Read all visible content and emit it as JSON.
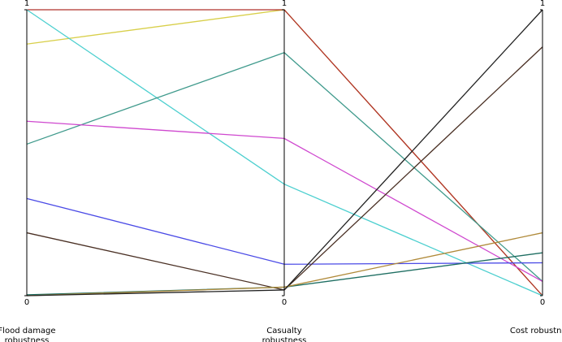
{
  "chart_data": {
    "type": "parallel",
    "dimensions": [
      "Flood damage robustness",
      "Casualty robustness",
      "Cost robustness"
    ],
    "ylim": [
      0,
      1
    ],
    "yticks": [
      0,
      1
    ],
    "series": [
      {
        "color": "#d8cf4a",
        "values": [
          0.88,
          1,
          0
        ]
      },
      {
        "color": "#b0302a",
        "values": [
          1,
          1,
          0
        ]
      },
      {
        "color": "#4ccfcf",
        "values": [
          1,
          0.39,
          0
        ]
      },
      {
        "color": "#3f9a8c",
        "values": [
          0.53,
          0.85,
          0.05
        ]
      },
      {
        "color": "#cf48cf",
        "values": [
          0.61,
          0.55,
          0.05
        ]
      },
      {
        "color": "#4a4ae6",
        "values": [
          0.34,
          0.11,
          0.115
        ]
      },
      {
        "color": "#4a3024",
        "values": [
          0.22,
          0.02,
          0.87
        ]
      },
      {
        "color": "#1e6e62",
        "values": [
          0.003,
          0.03,
          0.15
        ]
      },
      {
        "color": "#b08a3a",
        "values": [
          0,
          0.03,
          0.22
        ]
      },
      {
        "color": "#222222",
        "values": [
          0,
          0.02,
          1
        ]
      }
    ]
  }
}
